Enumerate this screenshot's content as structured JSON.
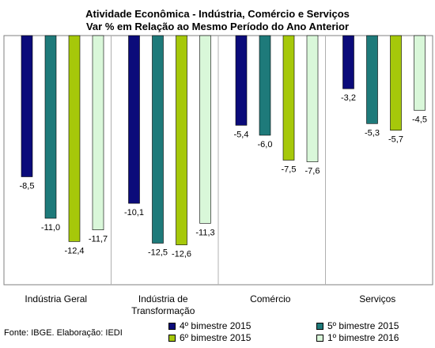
{
  "title": "Atividade Econômica - Indústria, Comércio e Serviços",
  "subtitle": "Var % em Relação ao Mesmo Período do Ano Anterior",
  "source": "Fonte: IBGE. Elaboração: IEDI",
  "chart_data": {
    "type": "bar",
    "categories": [
      "Indústria Geral",
      "Indústria de Transformação",
      "Comércio",
      "Serviços"
    ],
    "category_label_lines": [
      [
        "Indústria Geral"
      ],
      [
        "Indústria de",
        "Transformação"
      ],
      [
        "Comércio"
      ],
      [
        "Serviços"
      ]
    ],
    "series": [
      {
        "name": "4º bimestre 2015",
        "color": "#0b0b7a",
        "values": [
          -8.5,
          -10.1,
          -5.4,
          -3.2
        ],
        "labels": [
          "-8,5",
          "-10,1",
          "-5,4",
          "-3,2"
        ]
      },
      {
        "name": "5º bimestre 2015",
        "color": "#1e7a7a",
        "values": [
          -11.0,
          -12.5,
          -6.0,
          -5.3
        ],
        "labels": [
          "-11,0",
          "-12,5",
          "-6,0",
          "-5,3"
        ]
      },
      {
        "name": "6º bimestre 2015",
        "color": "#a6c80a",
        "values": [
          -12.4,
          -12.6,
          -7.5,
          -5.7
        ],
        "labels": [
          "-12,4",
          "-12,6",
          "-7,5",
          "-5,7"
        ]
      },
      {
        "name": "1º bimestre 2016",
        "color": "#d9f7d9",
        "values": [
          -11.7,
          -11.3,
          -7.6,
          -4.5
        ],
        "labels": [
          "-11,7",
          "-11,3",
          "-7,6",
          "-4,5"
        ]
      }
    ],
    "ylim": [
      -15,
      0
    ],
    "grid": false,
    "legend_position": "bottom-right"
  }
}
